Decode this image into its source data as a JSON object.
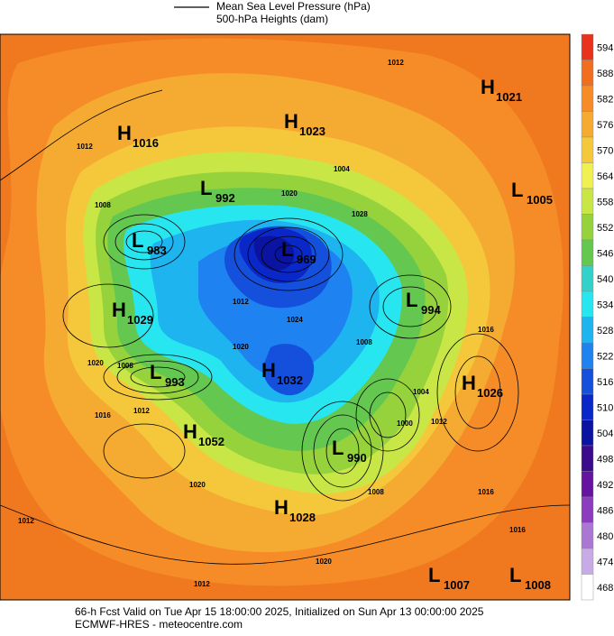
{
  "header": {
    "legend_lines": [
      "Mean Sea Level Pressure (hPa)",
      "500-hPa Heights (dam)"
    ]
  },
  "colorbar": {
    "ticks": [
      594,
      588,
      582,
      576,
      570,
      564,
      558,
      552,
      546,
      540,
      534,
      528,
      522,
      516,
      510,
      504,
      498,
      492,
      486,
      480,
      474,
      468
    ],
    "colors": [
      "#e8321e",
      "#f06e1e",
      "#f58c28",
      "#f5aa32",
      "#f5c83c",
      "#f0f050",
      "#c8e646",
      "#96d23c",
      "#64c850",
      "#32d2c8",
      "#28e6f0",
      "#1eb4f0",
      "#1e82f0",
      "#1450dc",
      "#0a28c8",
      "#0a14a0",
      "#3c0a8c",
      "#6414a0",
      "#8c3cbe",
      "#aa78d2",
      "#c8aae6",
      "#ffffff"
    ]
  },
  "pressure_centers": [
    {
      "kind": "H",
      "value": 1016
    },
    {
      "kind": "H",
      "value": 1023
    },
    {
      "kind": "H",
      "value": 1021
    },
    {
      "kind": "L",
      "value": 992
    },
    {
      "kind": "L",
      "value": 1005
    },
    {
      "kind": "L",
      "value": 983
    },
    {
      "kind": "L",
      "value": 969
    },
    {
      "kind": "H",
      "value": 1029
    },
    {
      "kind": "L",
      "value": 994
    },
    {
      "kind": "L",
      "value": 993
    },
    {
      "kind": "H",
      "value": 1032
    },
    {
      "kind": "H",
      "value": 1026
    },
    {
      "kind": "H",
      "value": 1052
    },
    {
      "kind": "L",
      "value": 990
    },
    {
      "kind": "H",
      "value": 1028
    },
    {
      "kind": "L",
      "value": 1007
    },
    {
      "kind": "L",
      "value": 1008
    }
  ],
  "isobar_labels": [
    1012,
    1012,
    1004,
    1020,
    1028,
    1008,
    1012,
    1024,
    1020,
    1020,
    1008,
    1016,
    1012,
    1008,
    1004,
    1000,
    1012,
    1020,
    1008,
    1016,
    1012,
    1016,
    1020,
    1012,
    1016
  ],
  "footer": {
    "lines": [
      "66-h Fcst Valid on Tue Apr 15 18:00:00 2025, Initialized on Sun Apr 13 00:00:00 2025",
      "ECMWF-HRES  - meteocentre.com"
    ]
  }
}
